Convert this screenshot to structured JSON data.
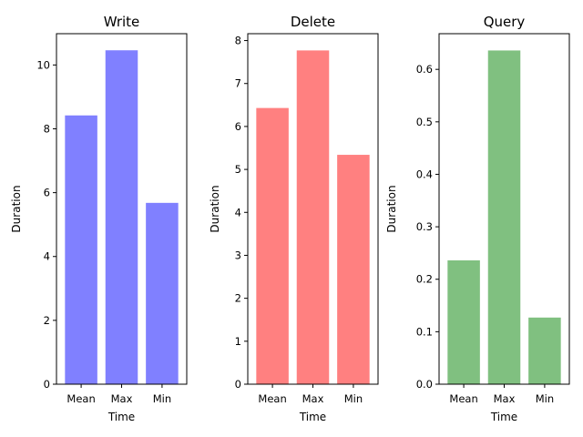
{
  "chart_data": [
    {
      "type": "bar",
      "title": "Write",
      "xlabel": "Time",
      "ylabel": "Duration",
      "categories": [
        "Mean",
        "Max",
        "Min"
      ],
      "values": [
        8.42,
        10.46,
        5.68
      ],
      "ylim": [
        0,
        10.98
      ],
      "yticks": [
        0,
        2,
        4,
        6,
        8,
        10
      ],
      "color": "#8080ff",
      "grid": false
    },
    {
      "type": "bar",
      "title": "Delete",
      "xlabel": "Time",
      "ylabel": "Duration",
      "categories": [
        "Mean",
        "Max",
        "Min"
      ],
      "values": [
        6.43,
        7.77,
        5.34
      ],
      "ylim": [
        0,
        8.16
      ],
      "yticks": [
        0,
        1,
        2,
        3,
        4,
        5,
        6,
        7,
        8
      ],
      "color": "#ff8080",
      "grid": false
    },
    {
      "type": "bar",
      "title": "Query",
      "xlabel": "Time",
      "ylabel": "Duration",
      "categories": [
        "Mean",
        "Max",
        "Min"
      ],
      "values": [
        0.236,
        0.636,
        0.127
      ],
      "ylim": [
        0,
        0.668
      ],
      "yticks": [
        "0.0",
        "0.1",
        "0.2",
        "0.3",
        "0.4",
        "0.5",
        "0.6"
      ],
      "color": "#80c080",
      "grid": false
    }
  ]
}
